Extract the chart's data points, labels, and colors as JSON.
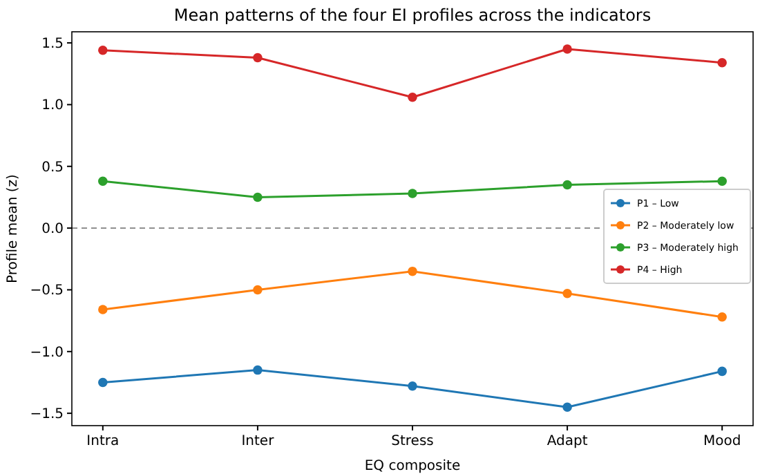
{
  "chart_data": {
    "type": "line",
    "title": "Mean patterns of the four EI profiles across the indicators",
    "xlabel": "EQ composite",
    "ylabel": "Profile mean (z)",
    "categories": [
      "Intra",
      "Inter",
      "Stress",
      "Adapt",
      "Mood"
    ],
    "series": [
      {
        "name": "P1 – Low",
        "color": "#1f77b4",
        "values": [
          -1.25,
          -1.15,
          -1.28,
          -1.45,
          -1.16
        ]
      },
      {
        "name": "P2 – Moderately low",
        "color": "#ff7f0e",
        "values": [
          -0.66,
          -0.5,
          -0.35,
          -0.53,
          -0.72
        ]
      },
      {
        "name": "P3 – Moderately high",
        "color": "#2ca02c",
        "values": [
          0.38,
          0.25,
          0.28,
          0.35,
          0.38
        ]
      },
      {
        "name": "P4 – High",
        "color": "#d62728",
        "values": [
          1.44,
          1.38,
          1.06,
          1.45,
          1.34
        ]
      }
    ],
    "ylim": [
      -1.6,
      1.59
    ],
    "yticks": [
      {
        "value": -1.5,
        "label": "−1.5"
      },
      {
        "value": -1,
        "label": "−1.0"
      },
      {
        "value": -0.5,
        "label": "−0.5"
      },
      {
        "value": 0,
        "label": "0.0"
      },
      {
        "value": 0.5,
        "label": "0.5"
      },
      {
        "value": 1,
        "label": "1.0"
      },
      {
        "value": 1.5,
        "label": "1.5"
      }
    ],
    "ref_lines": [
      {
        "axis": "y",
        "value": 0,
        "color": "#808080",
        "line_style": "dashed"
      }
    ],
    "legend": "right",
    "marker": "circle",
    "line_style": "solid",
    "grid": false
  }
}
